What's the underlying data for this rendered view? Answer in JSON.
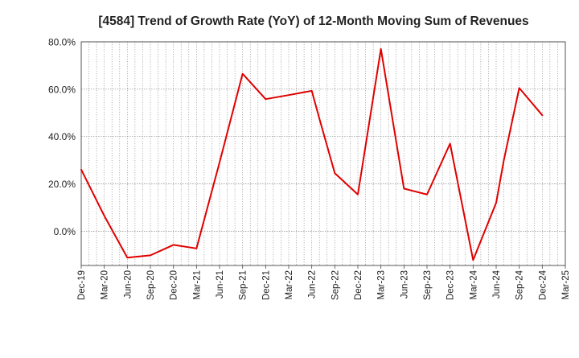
{
  "chart_data": {
    "type": "line",
    "title": "[4584]  Trend of Growth Rate (YoY) of 12-Month Moving Sum of Revenues",
    "xlabel": "",
    "ylabel": "",
    "ylim": [
      -14.5,
      80
    ],
    "yticks": [
      80,
      60,
      40,
      20,
      0
    ],
    "ytick_labels": [
      "80.0%",
      "60.0%",
      "40.0%",
      "20.0%",
      "0.0%"
    ],
    "x_tick_labels": [
      "Dec-19",
      "Mar-20",
      "Jun-20",
      "Sep-20",
      "Dec-20",
      "Mar-21",
      "Jun-21",
      "Sep-21",
      "Dec-21",
      "Mar-22",
      "Jun-22",
      "Sep-22",
      "Dec-22",
      "Mar-23",
      "Jun-23",
      "Sep-23",
      "Dec-23",
      "Mar-24",
      "Jun-24",
      "Sep-24",
      "Dec-24",
      "Mar-25"
    ],
    "months_per_tick": 3,
    "grid": true,
    "line_color": "#e00000",
    "series": [
      {
        "name": "",
        "x": [
          "Dec-19",
          "Mar-20",
          "Jun-20",
          "Sep-20",
          "Dec-20",
          "Mar-21",
          "Jun-21",
          "Sep-21",
          "Dec-21",
          "Mar-22",
          "Jun-22",
          "Jul-22",
          "Sep-22",
          "Dec-22",
          "Mar-23",
          "Jun-23",
          "Sep-23",
          "Dec-23",
          "Mar-24",
          "Jun-24",
          "Jul-24",
          "Sep-24",
          "Dec-24"
        ],
        "values": [
          26.0,
          6.5,
          -11.2,
          -10.2,
          -5.8,
          -7.3,
          29.0,
          66.5,
          55.8,
          57.5,
          59.3,
          47.5,
          24.5,
          15.5,
          77.0,
          18.0,
          15.5,
          37.0,
          -12.2,
          12.0,
          30.0,
          60.5,
          49.0
        ]
      }
    ]
  }
}
